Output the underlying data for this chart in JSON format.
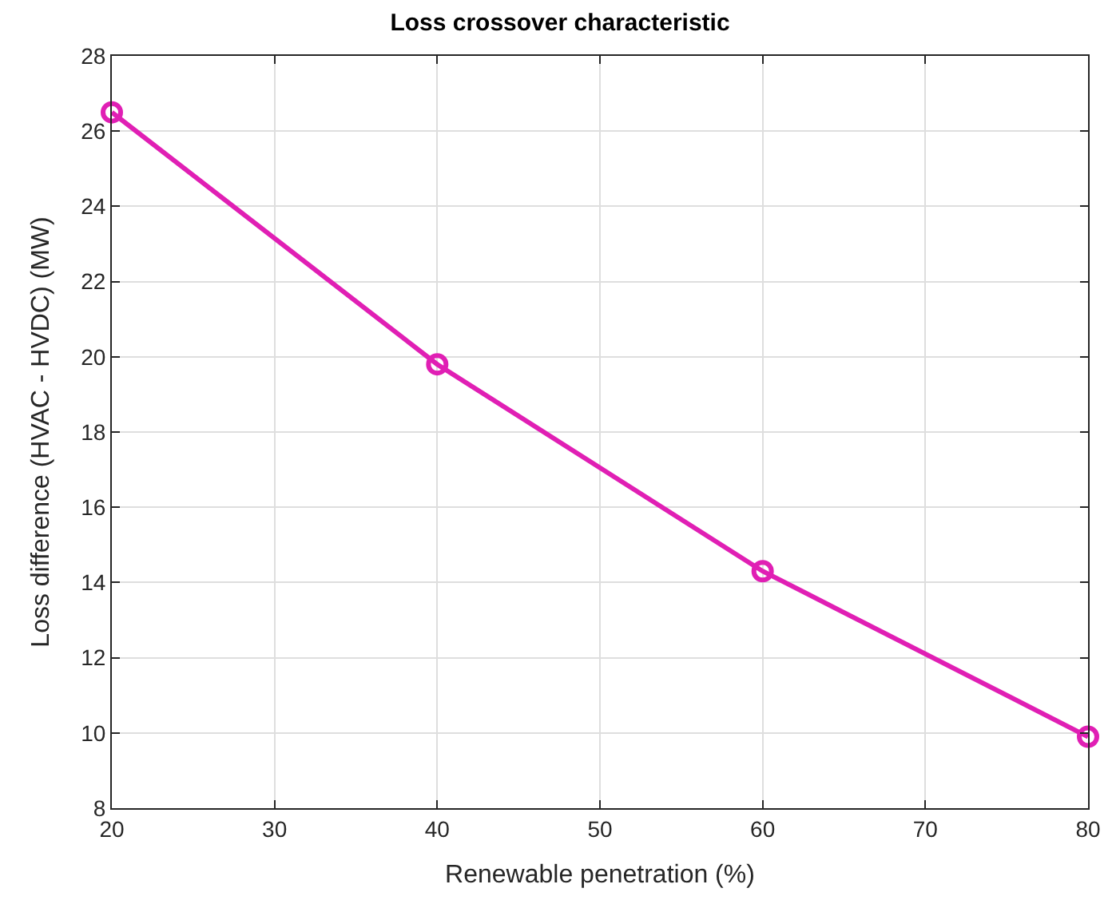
{
  "chart_data": {
    "type": "line",
    "title": "Loss crossover characteristic",
    "xlabel": "Renewable penetration (%)",
    "ylabel": "Loss difference (HVAC - HVDC) (MW)",
    "x": [
      20,
      40,
      60,
      80
    ],
    "series": [
      {
        "color": "#e01fb4",
        "values": [
          26.5,
          19.8,
          14.3,
          9.9
        ]
      }
    ],
    "xlim": [
      20,
      80
    ],
    "xticks": [
      20,
      30,
      40,
      50,
      60,
      70,
      80
    ],
    "ylim": [
      8,
      28
    ],
    "yticks": [
      8,
      10,
      12,
      14,
      16,
      18,
      20,
      22,
      24,
      26,
      28
    ],
    "grid": true,
    "marker": "circle",
    "line_style": "solid"
  }
}
